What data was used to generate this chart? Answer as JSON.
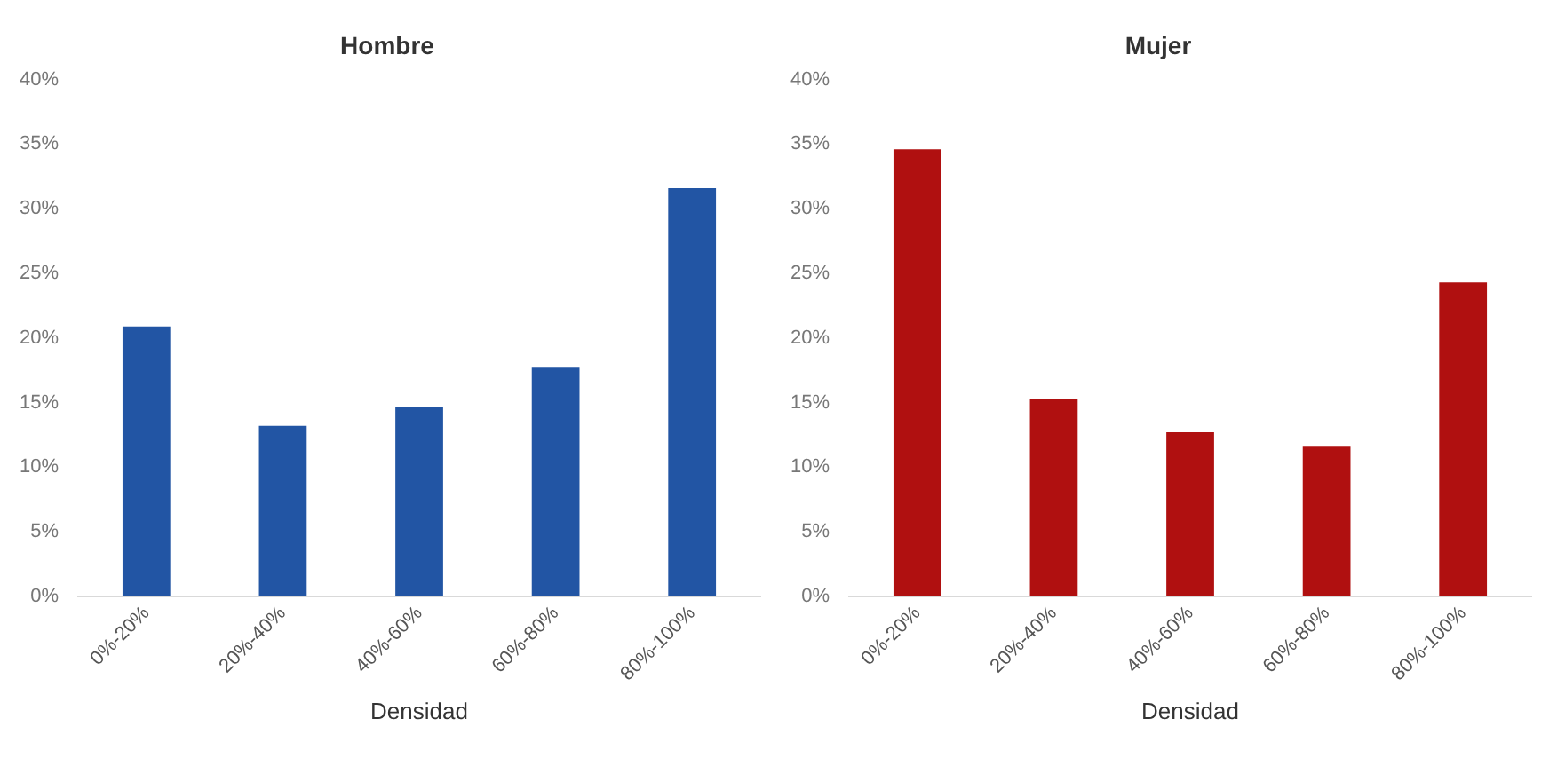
{
  "chart_data": [
    {
      "type": "bar",
      "title": "Hombre",
      "xlabel": "Densidad",
      "categories": [
        "0%-20%",
        "20%-40%",
        "40%-60%",
        "60%-80%",
        "80%-100%"
      ],
      "values": [
        20.9,
        13.2,
        14.7,
        17.7,
        31.6
      ],
      "color": "#2255a4",
      "ylim": [
        0,
        40
      ],
      "yticks": [
        {
          "value": 0,
          "label": "0%"
        },
        {
          "value": 5,
          "label": "5%"
        },
        {
          "value": 10,
          "label": "10%"
        },
        {
          "value": 15,
          "label": "15%"
        },
        {
          "value": 20,
          "label": "20%"
        },
        {
          "value": 25,
          "label": "25%"
        },
        {
          "value": 30,
          "label": "30%"
        },
        {
          "value": 35,
          "label": "35%"
        },
        {
          "value": 40,
          "label": "40%"
        }
      ],
      "grid": false,
      "legend": false
    },
    {
      "type": "bar",
      "title": "Mujer",
      "xlabel": "Densidad",
      "categories": [
        "0%-20%",
        "20%-40%",
        "40%-60%",
        "60%-80%",
        "80%-100%"
      ],
      "values": [
        34.6,
        15.3,
        12.7,
        11.6,
        24.3
      ],
      "color": "#b01010",
      "ylim": [
        0,
        40
      ],
      "yticks": [
        {
          "value": 0,
          "label": "0%"
        },
        {
          "value": 5,
          "label": "5%"
        },
        {
          "value": 10,
          "label": "10%"
        },
        {
          "value": 15,
          "label": "15%"
        },
        {
          "value": 20,
          "label": "20%"
        },
        {
          "value": 25,
          "label": "25%"
        },
        {
          "value": 30,
          "label": "30%"
        },
        {
          "value": 35,
          "label": "35%"
        },
        {
          "value": 40,
          "label": "40%"
        }
      ],
      "grid": false,
      "legend": false
    }
  ]
}
